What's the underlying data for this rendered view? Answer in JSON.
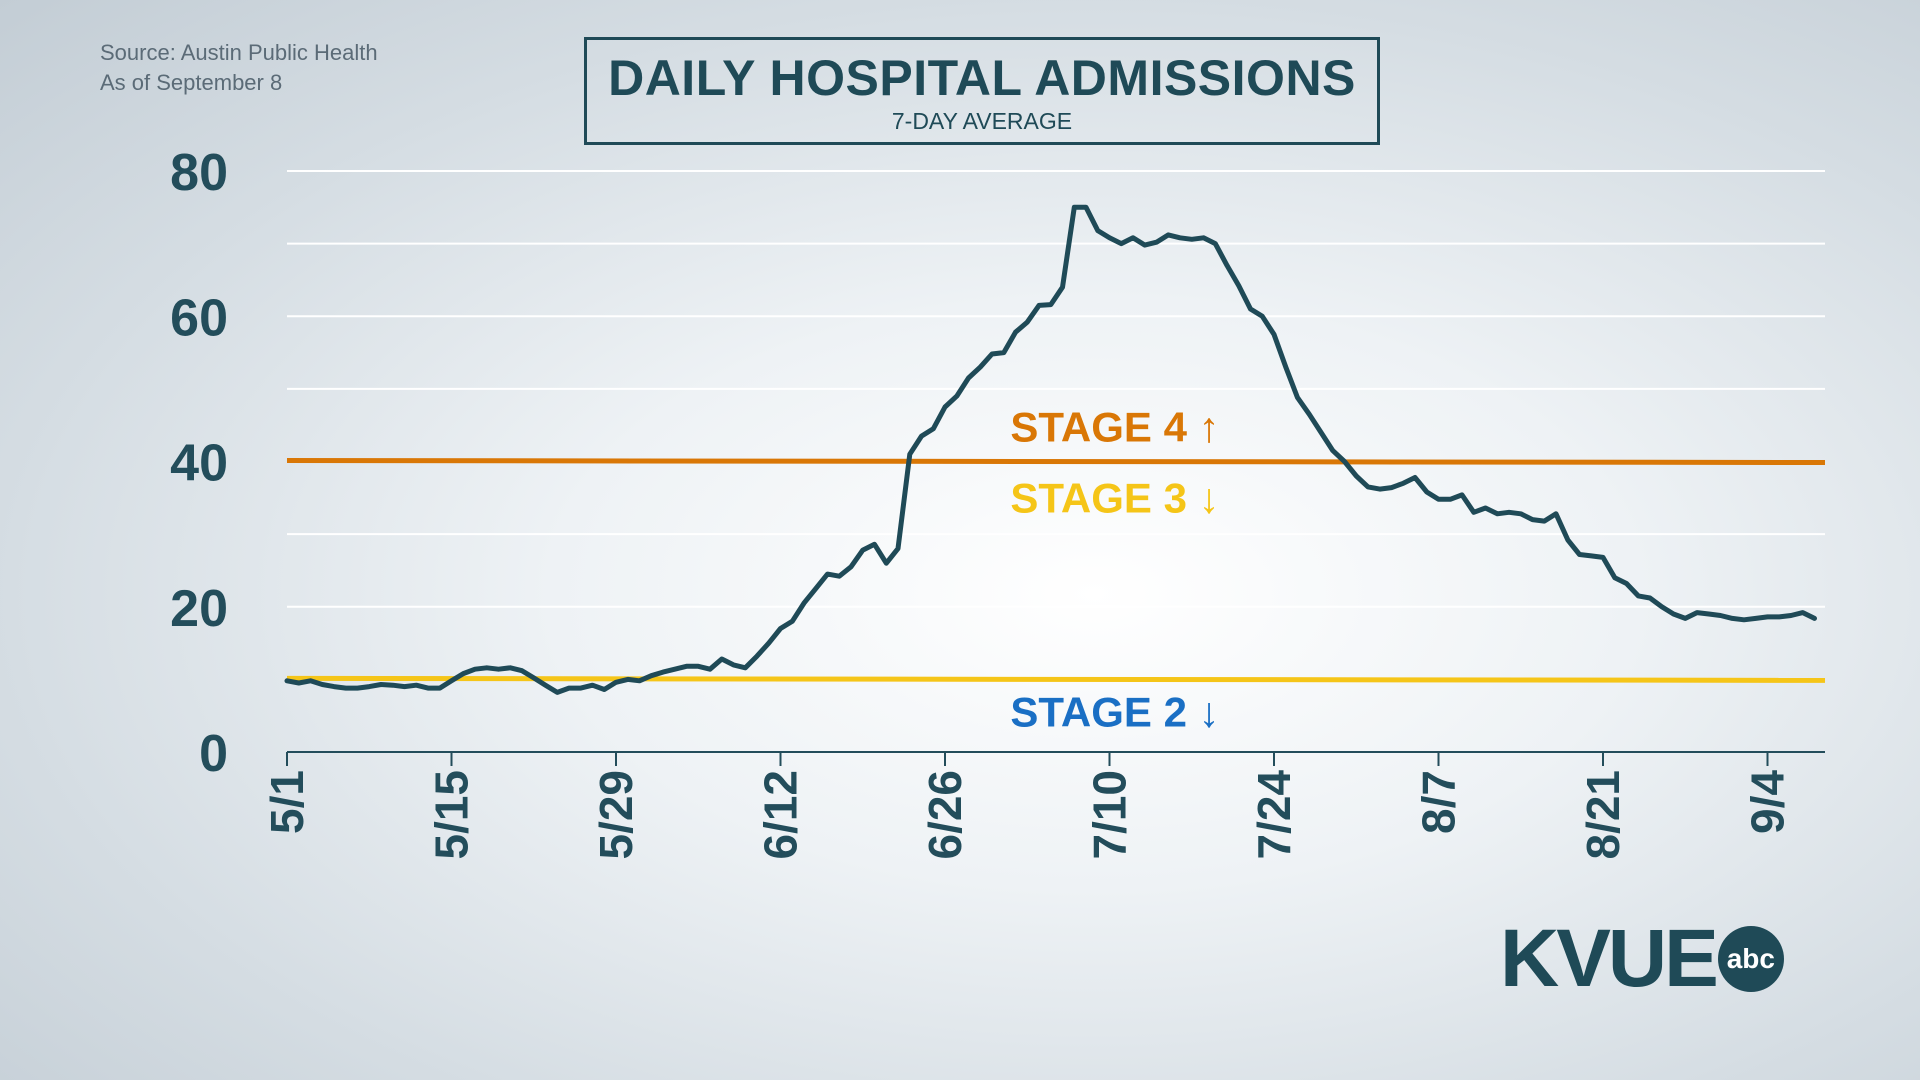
{
  "source": {
    "line1": "Source: Austin Public Health",
    "line2": "As of September 8"
  },
  "title": {
    "main": "DAILY HOSPITAL ADMISSIONS",
    "sub": "7-DAY AVERAGE"
  },
  "logo": {
    "text": "KVUE",
    "badge": "abc"
  },
  "colors": {
    "line": "#1f4a57",
    "stage4": "#d97706",
    "stage3": "#f5c518",
    "stage2": "#1a6fc4",
    "grid": "#ffffff"
  },
  "chart_data": {
    "type": "line",
    "title": "DAILY HOSPITAL ADMISSIONS",
    "subtitle": "7-DAY AVERAGE",
    "xlabel": "",
    "ylabel": "",
    "ylim": [
      0,
      80
    ],
    "yticks": [
      0,
      20,
      40,
      60,
      80
    ],
    "grid": true,
    "x_tick_labels": [
      "5/1",
      "5/15",
      "5/29",
      "6/12",
      "6/26",
      "7/10",
      "7/24",
      "8/7",
      "8/21",
      "9/4"
    ],
    "x_tick_days": [
      0,
      14,
      28,
      42,
      56,
      70,
      84,
      98,
      112,
      126
    ],
    "x_range_days": [
      0,
      130
    ],
    "reference_lines": [
      {
        "label": "STAGE 4",
        "arrow": "↑",
        "value": 40,
        "color": "#d97706",
        "position": "above"
      },
      {
        "label": "STAGE 3",
        "arrow": "↓",
        "value": 40,
        "color": "#f5c518",
        "position": "below"
      },
      {
        "label": "STAGE 2",
        "arrow": "↓",
        "value": 10,
        "color": "#1a6fc4",
        "position": "below"
      }
    ],
    "series": [
      {
        "x_start": "5/1",
        "values": [
          9.8,
          9.5,
          9.8,
          9.3,
          9.0,
          8.8,
          8.8,
          9.0,
          9.3,
          9.2,
          9.0,
          9.2,
          8.8,
          8.8,
          9.8,
          10.8,
          11.4,
          11.6,
          11.4,
          11.6,
          11.2,
          10.2,
          9.2,
          8.2,
          8.8,
          8.8,
          9.2,
          8.6,
          9.6,
          10.0,
          9.8,
          10.5,
          11.0,
          11.4,
          11.8,
          11.8,
          11.4,
          12.8,
          12.0,
          11.6,
          13.2,
          15.0,
          17.0,
          18.0,
          20.5,
          22.5,
          24.5,
          24.2,
          25.5,
          27.8,
          28.6,
          26.0,
          28.0,
          41.0,
          43.5,
          44.5,
          47.5,
          49.0,
          51.5,
          53.0,
          54.8,
          55.0,
          57.8,
          59.2,
          61.5,
          61.6,
          64.0,
          75.0,
          75.0,
          71.8,
          70.8,
          70.0,
          70.8,
          69.8,
          70.2,
          71.2,
          70.8,
          70.6,
          70.8,
          70.0,
          67.0,
          64.2,
          61.0,
          60.0,
          57.5,
          53.0,
          48.8,
          46.5,
          44.0,
          41.5,
          40.0,
          38.0,
          36.5,
          36.2,
          36.4,
          37.0,
          37.8,
          35.8,
          34.8,
          34.8,
          35.4,
          33.0,
          33.6,
          32.8,
          33.0,
          32.8,
          32.0,
          31.8,
          32.8,
          29.2,
          27.2,
          27.0,
          26.8,
          24.0,
          23.2,
          21.5,
          21.2,
          20.0,
          19.0,
          18.4,
          19.2,
          19.0,
          18.8,
          18.4,
          18.2,
          18.4,
          18.6,
          18.6,
          18.8,
          19.2,
          18.4
        ]
      }
    ]
  }
}
